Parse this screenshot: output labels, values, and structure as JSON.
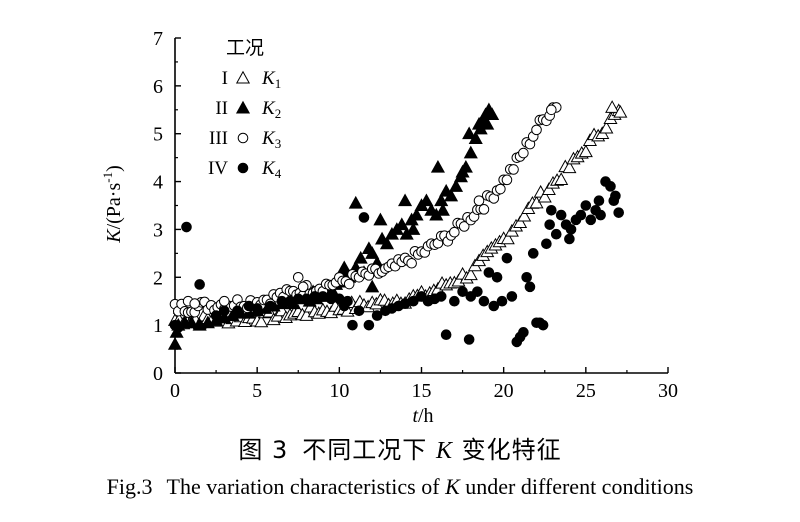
{
  "caption_cn": {
    "prefix": "图 3",
    "text_before": "不同工况下",
    "var": "K",
    "text_after": "变化特征"
  },
  "caption_en": {
    "prefix": "Fig.3",
    "text_before": "The variation characteristics of",
    "var": "K",
    "text_after": "under different conditions"
  },
  "chart_data": {
    "type": "scatter",
    "xlabel": {
      "var": "t",
      "unit": "/h"
    },
    "ylabel": {
      "var": "K",
      "unit": "/(Pa·s",
      "exp": "-1",
      "close": ")"
    },
    "xlim": [
      0,
      30
    ],
    "ylim": [
      0,
      7
    ],
    "xticks": [
      0,
      5,
      10,
      15,
      20,
      25,
      30
    ],
    "yticks": [
      0,
      1,
      2,
      3,
      4,
      5,
      6,
      7
    ],
    "grid": false,
    "legend": {
      "title": "工况",
      "position": "top-left",
      "entries": [
        {
          "roman": "I",
          "symbol": "triangle-open",
          "var": "K",
          "sub": "1"
        },
        {
          "roman": "II",
          "symbol": "triangle-filled",
          "var": "K",
          "sub": "2"
        },
        {
          "roman": "III",
          "symbol": "circle-open",
          "var": "K",
          "sub": "3"
        },
        {
          "roman": "IV",
          "symbol": "circle-filled",
          "var": "K",
          "sub": "4"
        }
      ]
    },
    "series": [
      {
        "id": "K1",
        "symbol": "triangle-open",
        "generator": "smooth",
        "t_start": 0,
        "t_end": 27,
        "t_step": 0.25,
        "anchors": [
          [
            0,
            1.1
          ],
          [
            5,
            1.15
          ],
          [
            10,
            1.35
          ],
          [
            15,
            1.6
          ],
          [
            18,
            2.1
          ],
          [
            20,
            2.8
          ],
          [
            22,
            3.6
          ],
          [
            24,
            4.3
          ],
          [
            26,
            5.1
          ],
          [
            27,
            5.45
          ]
        ],
        "jitter": 0.1,
        "extra": [
          [
            0.3,
            1.35
          ],
          [
            0.8,
            1.4
          ],
          [
            26.6,
            5.55
          ],
          [
            27.1,
            5.45
          ]
        ]
      },
      {
        "id": "K2",
        "symbol": "triangle-filled",
        "generator": "points",
        "points": [
          [
            0,
            0.6
          ],
          [
            0.1,
            0.85
          ],
          [
            0.2,
            1.0
          ],
          [
            0.6,
            1.05
          ],
          [
            1.0,
            1.05
          ],
          [
            1.5,
            1.0
          ],
          [
            2,
            1.05
          ],
          [
            2.5,
            1.1
          ],
          [
            3,
            1.15
          ],
          [
            3.5,
            1.2
          ],
          [
            4,
            1.25
          ],
          [
            4.5,
            1.25
          ],
          [
            5,
            1.3
          ],
          [
            5.5,
            1.35
          ],
          [
            6,
            1.4
          ],
          [
            6.5,
            1.45
          ],
          [
            6.8,
            1.5
          ],
          [
            7.2,
            1.45
          ],
          [
            7.5,
            1.6
          ],
          [
            7.8,
            1.55
          ],
          [
            8,
            1.6
          ],
          [
            8.2,
            1.5
          ],
          [
            8.4,
            1.7
          ],
          [
            8.6,
            1.55
          ],
          [
            8.8,
            1.65
          ],
          [
            9,
            1.75
          ],
          [
            9.2,
            1.6
          ],
          [
            9.4,
            1.8
          ],
          [
            9.6,
            1.7
          ],
          [
            9.8,
            1.85
          ],
          [
            10,
            1.9
          ],
          [
            10.2,
            2.0
          ],
          [
            10.4,
            2.1
          ],
          [
            10.6,
            2.0
          ],
          [
            11,
            2.2
          ],
          [
            11.3,
            2.4
          ],
          [
            11.5,
            2.1
          ],
          [
            11.8,
            2.6
          ],
          [
            12,
            2.5
          ],
          [
            12.3,
            2.3
          ],
          [
            12.6,
            2.8
          ],
          [
            12.9,
            2.7
          ],
          [
            13.2,
            2.9
          ],
          [
            13.5,
            3.0
          ],
          [
            13.8,
            3.1
          ],
          [
            14.1,
            2.9
          ],
          [
            14.4,
            3.2
          ],
          [
            14.7,
            3.3
          ],
          [
            15,
            3.5
          ],
          [
            15.3,
            3.6
          ],
          [
            15.6,
            3.4
          ],
          [
            15.9,
            3.3
          ],
          [
            16.2,
            3.6
          ],
          [
            16.5,
            3.8
          ],
          [
            16.8,
            3.7
          ],
          [
            17.1,
            3.9
          ],
          [
            17.4,
            4.1
          ],
          [
            17.7,
            4.3
          ],
          [
            18,
            4.6
          ],
          [
            18.3,
            4.9
          ],
          [
            18.6,
            5.1
          ],
          [
            18.9,
            5.4
          ],
          [
            19.1,
            5.5
          ],
          [
            19.3,
            5.4
          ],
          [
            18.5,
            5.2
          ],
          [
            11.0,
            3.55
          ],
          [
            10.9,
            2.1
          ],
          [
            12.5,
            3.2
          ],
          [
            14,
            3.6
          ],
          [
            14.5,
            3.0
          ],
          [
            16,
            4.3
          ],
          [
            16.3,
            3.4
          ],
          [
            17.5,
            4.2
          ],
          [
            17.9,
            5.0
          ],
          [
            18.8,
            5.3
          ],
          [
            19.0,
            5.2
          ],
          [
            12.0,
            1.8
          ],
          [
            10.3,
            2.2
          ]
        ]
      },
      {
        "id": "K3",
        "symbol": "circle-open",
        "generator": "smooth",
        "t_start": 0,
        "t_end": 23,
        "t_step": 0.2,
        "anchors": [
          [
            0,
            1.35
          ],
          [
            5,
            1.5
          ],
          [
            10,
            1.9
          ],
          [
            13,
            2.15
          ],
          [
            15,
            2.5
          ],
          [
            17,
            2.95
          ],
          [
            19,
            3.6
          ],
          [
            20,
            4.0
          ],
          [
            21,
            4.5
          ],
          [
            22,
            5.1
          ],
          [
            23,
            5.55
          ]
        ],
        "jitter": 0.12,
        "extra": [
          [
            0.8,
            1.5
          ],
          [
            1.2,
            1.45
          ],
          [
            3,
            1.5
          ],
          [
            7.5,
            2.0
          ],
          [
            7.8,
            1.8
          ],
          [
            18.5,
            3.6
          ],
          [
            23.2,
            5.55
          ],
          [
            22.9,
            5.5
          ]
        ]
      },
      {
        "id": "K4",
        "symbol": "circle-filled",
        "generator": "points",
        "points": [
          [
            0,
            1.0
          ],
          [
            0.2,
            0.95
          ],
          [
            0.7,
            3.05
          ],
          [
            1.5,
            1.85
          ],
          [
            2.5,
            1.2
          ],
          [
            3,
            1.3
          ],
          [
            3.8,
            1.3
          ],
          [
            4.5,
            1.4
          ],
          [
            5,
            1.35
          ],
          [
            5.8,
            1.4
          ],
          [
            6.5,
            1.5
          ],
          [
            7,
            1.5
          ],
          [
            7.5,
            1.55
          ],
          [
            8,
            1.55
          ],
          [
            8.5,
            1.6
          ],
          [
            9,
            1.6
          ],
          [
            9.5,
            1.55
          ],
          [
            10,
            1.55
          ],
          [
            10.3,
            1.4
          ],
          [
            10.5,
            1.5
          ],
          [
            10.8,
            1.0
          ],
          [
            11.2,
            1.3
          ],
          [
            11.5,
            3.25
          ],
          [
            11.8,
            1.0
          ],
          [
            12.3,
            1.2
          ],
          [
            12.8,
            1.3
          ],
          [
            13.2,
            1.35
          ],
          [
            13.6,
            1.4
          ],
          [
            14,
            1.45
          ],
          [
            14.5,
            1.5
          ],
          [
            15,
            1.6
          ],
          [
            15.4,
            1.5
          ],
          [
            15.8,
            1.55
          ],
          [
            16.2,
            1.6
          ],
          [
            16.5,
            0.8
          ],
          [
            17,
            1.5
          ],
          [
            17.5,
            1.7
          ],
          [
            17.9,
            0.7
          ],
          [
            18,
            1.6
          ],
          [
            18.4,
            1.7
          ],
          [
            18.8,
            1.5
          ],
          [
            19.1,
            2.1
          ],
          [
            19.4,
            1.4
          ],
          [
            19.6,
            2.0
          ],
          [
            19.9,
            1.5
          ],
          [
            20.2,
            2.4
          ],
          [
            20.5,
            1.6
          ],
          [
            20.8,
            0.65
          ],
          [
            21.0,
            0.75
          ],
          [
            21.2,
            0.85
          ],
          [
            21.4,
            2.0
          ],
          [
            21.6,
            1.8
          ],
          [
            21.8,
            2.5
          ],
          [
            22,
            1.05
          ],
          [
            22.2,
            1.05
          ],
          [
            22.4,
            1.0
          ],
          [
            22.6,
            2.7
          ],
          [
            22.8,
            3.1
          ],
          [
            23.2,
            2.9
          ],
          [
            23.5,
            3.3
          ],
          [
            23.8,
            3.1
          ],
          [
            24.1,
            3.0
          ],
          [
            24.4,
            3.2
          ],
          [
            24.7,
            3.3
          ],
          [
            25,
            3.5
          ],
          [
            25.3,
            3.2
          ],
          [
            25.6,
            3.4
          ],
          [
            25.9,
            3.3
          ],
          [
            26.2,
            4.0
          ],
          [
            26.5,
            3.9
          ],
          [
            26.7,
            3.6
          ],
          [
            27.0,
            3.35
          ],
          [
            25.8,
            3.6
          ],
          [
            24.0,
            2.8
          ],
          [
            22.9,
            3.4
          ],
          [
            26.8,
            3.7
          ]
        ]
      }
    ]
  }
}
